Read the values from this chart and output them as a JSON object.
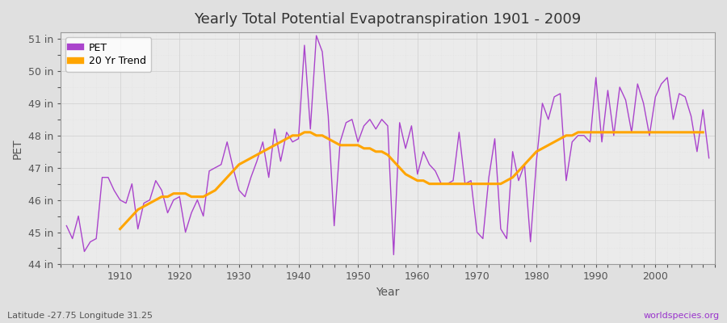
{
  "title": "Yearly Total Potential Evapotranspiration 1901 - 2009",
  "xlabel": "Year",
  "ylabel": "PET",
  "footnote_left": "Latitude -27.75 Longitude 31.25",
  "footnote_right": "worldspecies.org",
  "pet_color": "#AA44CC",
  "trend_color": "#FFA500",
  "fig_bg_color": "#E0E0E0",
  "plot_bg_color": "#EBEBEB",
  "years": [
    1901,
    1902,
    1903,
    1904,
    1905,
    1906,
    1907,
    1908,
    1909,
    1910,
    1911,
    1912,
    1913,
    1914,
    1915,
    1916,
    1917,
    1918,
    1919,
    1920,
    1921,
    1922,
    1923,
    1924,
    1925,
    1926,
    1927,
    1928,
    1929,
    1930,
    1931,
    1932,
    1933,
    1934,
    1935,
    1936,
    1937,
    1938,
    1939,
    1940,
    1941,
    1942,
    1943,
    1944,
    1945,
    1946,
    1947,
    1948,
    1949,
    1950,
    1951,
    1952,
    1953,
    1954,
    1955,
    1956,
    1957,
    1958,
    1959,
    1960,
    1961,
    1962,
    1963,
    1964,
    1965,
    1966,
    1967,
    1968,
    1969,
    1970,
    1971,
    1972,
    1973,
    1974,
    1975,
    1976,
    1977,
    1978,
    1979,
    1980,
    1981,
    1982,
    1983,
    1984,
    1985,
    1986,
    1987,
    1988,
    1989,
    1990,
    1991,
    1992,
    1993,
    1994,
    1995,
    1996,
    1997,
    1998,
    1999,
    2000,
    2001,
    2002,
    2003,
    2004,
    2005,
    2006,
    2007,
    2008,
    2009
  ],
  "pet_values": [
    45.2,
    44.8,
    45.5,
    44.4,
    44.7,
    44.8,
    46.7,
    46.7,
    46.3,
    46.0,
    45.9,
    46.5,
    45.1,
    45.9,
    46.0,
    46.6,
    46.3,
    45.6,
    46.0,
    46.1,
    45.0,
    45.6,
    46.0,
    45.5,
    46.9,
    47.0,
    47.1,
    47.8,
    47.0,
    46.3,
    46.1,
    46.7,
    47.2,
    47.8,
    46.7,
    48.2,
    47.2,
    48.1,
    47.8,
    47.9,
    50.8,
    48.2,
    51.1,
    50.6,
    48.6,
    45.2,
    47.8,
    48.4,
    48.5,
    47.8,
    48.3,
    48.5,
    48.2,
    48.5,
    48.3,
    44.3,
    48.4,
    47.6,
    48.3,
    46.8,
    47.5,
    47.1,
    46.9,
    46.5,
    46.5,
    46.6,
    48.1,
    46.5,
    46.6,
    45.0,
    44.8,
    46.7,
    47.9,
    45.1,
    44.8,
    47.5,
    46.6,
    47.1,
    44.7,
    47.2,
    49.0,
    48.5,
    49.2,
    49.3,
    46.6,
    47.8,
    48.0,
    48.0,
    47.8,
    49.8,
    47.8,
    49.4,
    48.0,
    49.5,
    49.1,
    48.1,
    49.6,
    49.0,
    48.0,
    49.2,
    49.6,
    49.8,
    48.5,
    49.3,
    49.2,
    48.6,
    47.5,
    48.8,
    47.3
  ],
  "trend_values": [
    null,
    null,
    null,
    null,
    null,
    null,
    null,
    null,
    null,
    45.1,
    45.3,
    45.5,
    45.7,
    45.8,
    45.9,
    46.0,
    46.1,
    46.1,
    46.2,
    46.2,
    46.2,
    46.1,
    46.1,
    46.1,
    46.2,
    46.3,
    46.5,
    46.7,
    46.9,
    47.1,
    47.2,
    47.3,
    47.4,
    47.5,
    47.6,
    47.7,
    47.8,
    47.9,
    48.0,
    48.0,
    48.1,
    48.1,
    48.0,
    48.0,
    47.9,
    47.8,
    47.7,
    47.7,
    47.7,
    47.7,
    47.6,
    47.6,
    47.5,
    47.5,
    47.4,
    47.2,
    47.0,
    46.8,
    46.7,
    46.6,
    46.6,
    46.5,
    46.5,
    46.5,
    46.5,
    46.5,
    46.5,
    46.5,
    46.5,
    46.5,
    46.5,
    46.5,
    46.5,
    46.5,
    46.6,
    46.7,
    46.9,
    47.1,
    47.3,
    47.5,
    47.6,
    47.7,
    47.8,
    47.9,
    48.0,
    48.0,
    48.1,
    48.1,
    48.1,
    48.1,
    48.1,
    48.1,
    48.1,
    48.1,
    48.1,
    48.1,
    48.1,
    48.1,
    48.1,
    48.1,
    48.1,
    48.1,
    48.1,
    48.1,
    48.1,
    48.1,
    48.1,
    48.1
  ],
  "ylim": [
    44.0,
    51.2
  ],
  "yticks": [
    44,
    45,
    46,
    47,
    48,
    49,
    50,
    51
  ],
  "ytick_labels": [
    "44 in",
    "45 in",
    "46 in",
    "47 in",
    "48 in",
    "49 in",
    "50 in",
    "51 in"
  ],
  "xlim": [
    1900,
    2010
  ],
  "xticks": [
    1910,
    1920,
    1930,
    1940,
    1950,
    1960,
    1970,
    1980,
    1990,
    2000
  ],
  "grid_major_color": "#CCCCCC",
  "grid_minor_color": "#D8D8D8",
  "title_fontsize": 13,
  "axis_fontsize": 10,
  "tick_fontsize": 9,
  "legend_fontsize": 9,
  "footnote_right_color": "#9933CC"
}
